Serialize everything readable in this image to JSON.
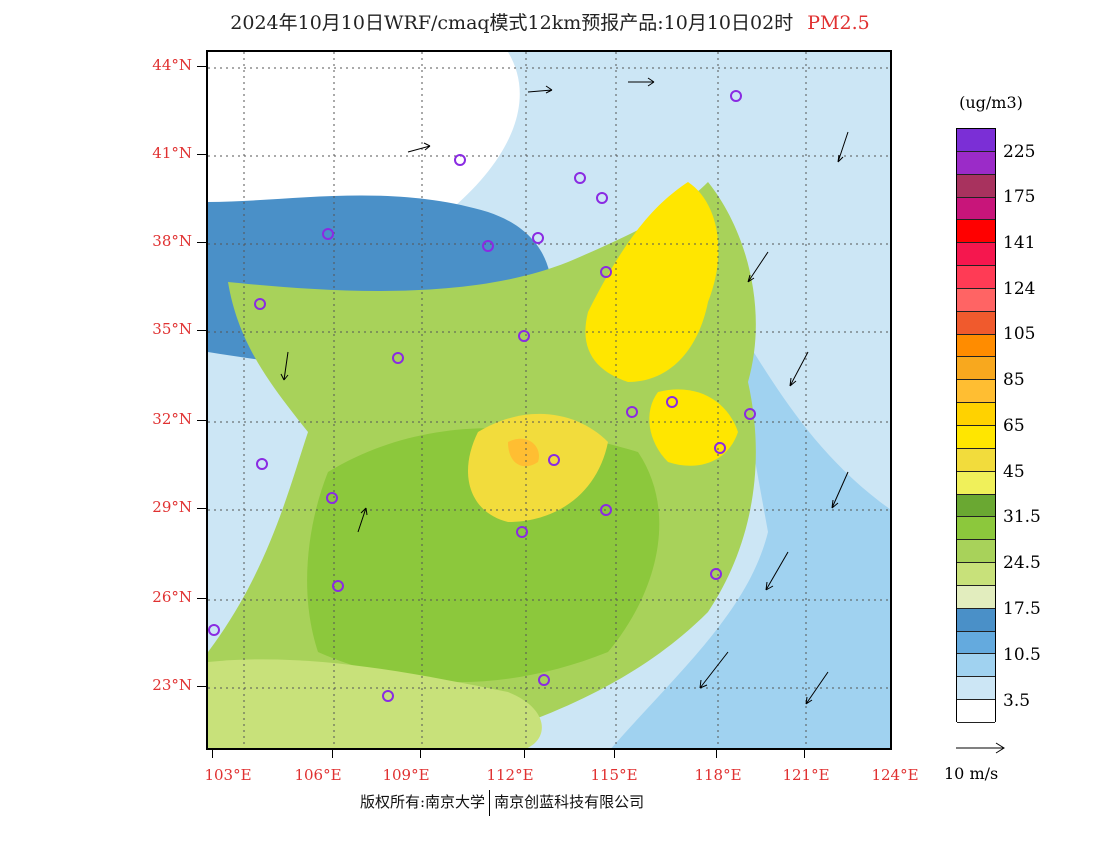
{
  "title": {
    "main": "2024年10月10日WRF/cmaq模式12km预报产品:10月10日02时",
    "pollutant": "PM2.5"
  },
  "axes": {
    "lat_labels": [
      "44°N",
      "41°N",
      "38°N",
      "35°N",
      "32°N",
      "29°N",
      "26°N",
      "23°N"
    ],
    "lon_labels": [
      "103°E",
      "106°E",
      "109°E",
      "112°E",
      "115°E",
      "118°E",
      "121°E",
      "124°E"
    ]
  },
  "colorbar": {
    "unit": "(ug/m3)",
    "labels": [
      "225",
      "175",
      "141",
      "124",
      "105",
      "85",
      "65",
      "45",
      "31.5",
      "24.5",
      "17.5",
      "10.5",
      "3.5"
    ],
    "colors": [
      "#7b2fd6",
      "#9b2bc8",
      "#a8325e",
      "#c8157a",
      "#ff0000",
      "#f5174e",
      "#ff3b55",
      "#ff6464",
      "#f05a2d",
      "#ff8c00",
      "#f8a81e",
      "#ffbe32",
      "#ffd200",
      "#ffe600",
      "#f2dc3c",
      "#f0f05a",
      "#6aa832",
      "#8cc83c",
      "#a8d25a",
      "#c8e17a",
      "#e2edbe",
      "#4a90c8",
      "#64aade",
      "#a0d2f0",
      "#cce6f5",
      "#ffffff"
    ]
  },
  "wind_scale": {
    "label": "10 m/s"
  },
  "footer": {
    "copyright": "版权所有:南京大学",
    "company": "南京创蓝科技有限公司"
  }
}
